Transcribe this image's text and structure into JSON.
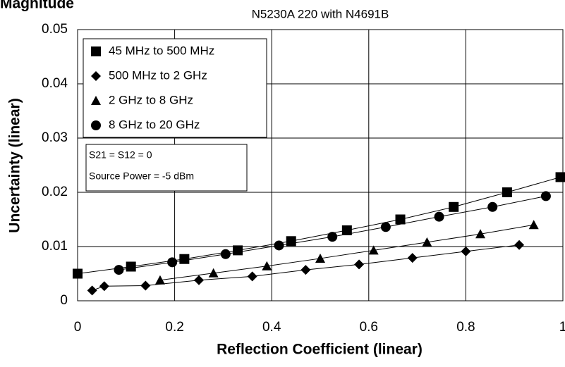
{
  "chart_data": {
    "type": "scatter",
    "heading": "Magnitude",
    "title": "N5230A 220 with N4691B",
    "x_label": "Reflection Coefficient (linear)",
    "y_label": "Uncertainty (linear)",
    "xlim": [
      0,
      1
    ],
    "xticks": [
      0,
      0.2,
      0.4,
      0.6,
      0.8,
      1
    ],
    "ylim": [
      0,
      0.05
    ],
    "yticks": [
      0,
      0.01,
      0.02,
      0.03,
      0.04,
      0.05
    ],
    "grid": true,
    "legend": "upper left",
    "annotations": [
      "S21 = S12 = 0",
      "Source Power = -5 dBm"
    ],
    "series": [
      {
        "name": "45 MHz to 500 MHz",
        "marker": "square",
        "color": "#000000",
        "x": [
          0,
          0.11,
          0.22,
          0.33,
          0.44,
          0.555,
          0.665,
          0.775,
          0.885,
          0.995
        ],
        "values": [
          0.005,
          0.0063,
          0.0077,
          0.0093,
          0.011,
          0.013,
          0.015,
          0.0173,
          0.02,
          0.0228
        ]
      },
      {
        "name": "500 MHz to 2 GHz",
        "marker": "diamond",
        "color": "#000000",
        "x": [
          0.03,
          0.055,
          0.14,
          0.25,
          0.36,
          0.47,
          0.58,
          0.69,
          0.8,
          0.91
        ],
        "values": [
          0.0019,
          0.0027,
          0.0028,
          0.0038,
          0.0045,
          0.0057,
          0.0067,
          0.0079,
          0.0091,
          0.0103
        ]
      },
      {
        "name": "2 GHz to 8 GHz",
        "marker": "triangle",
        "color": "#000000",
        "x": [
          0.17,
          0.28,
          0.39,
          0.5,
          0.61,
          0.72,
          0.83,
          0.94
        ],
        "values": [
          0.0038,
          0.0051,
          0.0064,
          0.0078,
          0.0093,
          0.0108,
          0.0123,
          0.014
        ]
      },
      {
        "name": "8 GHz to 20 GHz",
        "marker": "circle",
        "color": "#000000",
        "x": [
          0.085,
          0.195,
          0.305,
          0.415,
          0.525,
          0.635,
          0.745,
          0.855,
          0.965
        ],
        "values": [
          0.0057,
          0.0071,
          0.0086,
          0.0102,
          0.0118,
          0.0136,
          0.0155,
          0.0173,
          0.0193
        ]
      }
    ]
  }
}
